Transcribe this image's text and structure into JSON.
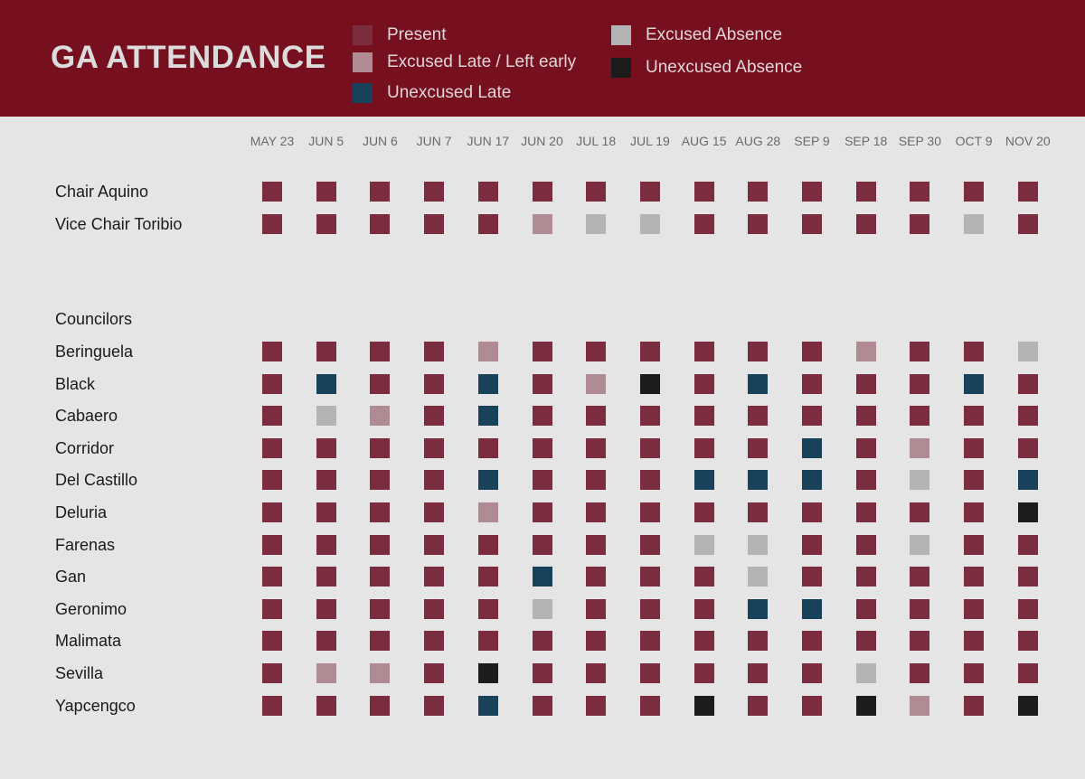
{
  "header": {
    "title": "GA ATTENDANCE"
  },
  "legend": [
    {
      "key": "P",
      "label": "Present",
      "color": "#7b2c3e"
    },
    {
      "key": "L",
      "label": "Excused Late / Left early",
      "color": "#b08b94"
    },
    {
      "key": "U",
      "label": "Unexcused Late",
      "color": "#174259"
    },
    {
      "key": "E",
      "label": "Excused Absence",
      "color": "#b4b4b4"
    },
    {
      "key": "A",
      "label": "Unexcused Absence",
      "color": "#1c1c1c"
    }
  ],
  "chart_data": {
    "type": "heatmap",
    "title": "GA ATTENDANCE",
    "dates": [
      "MAY 23",
      "JUN 5",
      "JUN 6",
      "JUN 7",
      "JUN 17",
      "JUN 20",
      "JUL 18",
      "JUL 19",
      "AUG 15",
      "AUG 28",
      "SEP 9",
      "SEP 18",
      "SEP 30",
      "OCT 9",
      "NOV 20"
    ],
    "section_label": "Councilors",
    "officers": [
      {
        "name": "Chair Aquino",
        "status": [
          "P",
          "P",
          "P",
          "P",
          "P",
          "P",
          "P",
          "P",
          "P",
          "P",
          "P",
          "P",
          "P",
          "P",
          "P"
        ]
      },
      {
        "name": "Vice Chair Toribio",
        "status": [
          "P",
          "P",
          "P",
          "P",
          "P",
          "L",
          "E",
          "E",
          "P",
          "P",
          "P",
          "P",
          "P",
          "E",
          "P"
        ]
      }
    ],
    "councilors": [
      {
        "name": "Beringuela",
        "status": [
          "P",
          "P",
          "P",
          "P",
          "L",
          "P",
          "P",
          "P",
          "P",
          "P",
          "P",
          "L",
          "P",
          "P",
          "E"
        ]
      },
      {
        "name": "Black",
        "status": [
          "P",
          "U",
          "P",
          "P",
          "U",
          "P",
          "L",
          "A",
          "P",
          "U",
          "P",
          "P",
          "P",
          "U",
          "P"
        ]
      },
      {
        "name": "Cabaero",
        "status": [
          "P",
          "E",
          "L",
          "P",
          "U",
          "P",
          "P",
          "P",
          "P",
          "P",
          "P",
          "P",
          "P",
          "P",
          "P"
        ]
      },
      {
        "name": "Corridor",
        "status": [
          "P",
          "P",
          "P",
          "P",
          "P",
          "P",
          "P",
          "P",
          "P",
          "P",
          "U",
          "P",
          "L",
          "P",
          "P"
        ]
      },
      {
        "name": "Del Castillo",
        "status": [
          "P",
          "P",
          "P",
          "P",
          "U",
          "P",
          "P",
          "P",
          "U",
          "U",
          "U",
          "P",
          "E",
          "P",
          "U"
        ]
      },
      {
        "name": "Deluria",
        "status": [
          "P",
          "P",
          "P",
          "P",
          "L",
          "P",
          "P",
          "P",
          "P",
          "P",
          "P",
          "P",
          "P",
          "P",
          "A"
        ]
      },
      {
        "name": "Farenas",
        "status": [
          "P",
          "P",
          "P",
          "P",
          "P",
          "P",
          "P",
          "P",
          "E",
          "E",
          "P",
          "P",
          "E",
          "P",
          "P"
        ]
      },
      {
        "name": "Gan",
        "status": [
          "P",
          "P",
          "P",
          "P",
          "P",
          "U",
          "P",
          "P",
          "P",
          "E",
          "P",
          "P",
          "P",
          "P",
          "P"
        ]
      },
      {
        "name": "Geronimo",
        "status": [
          "P",
          "P",
          "P",
          "P",
          "P",
          "E",
          "P",
          "P",
          "P",
          "U",
          "U",
          "P",
          "P",
          "P",
          "P"
        ]
      },
      {
        "name": "Malimata",
        "status": [
          "P",
          "P",
          "P",
          "P",
          "P",
          "P",
          "P",
          "P",
          "P",
          "P",
          "P",
          "P",
          "P",
          "P",
          "P"
        ]
      },
      {
        "name": "Sevilla",
        "status": [
          "P",
          "L",
          "L",
          "P",
          "A",
          "P",
          "P",
          "P",
          "P",
          "P",
          "P",
          "E",
          "P",
          "P",
          "P"
        ]
      },
      {
        "name": "Yapcengco",
        "status": [
          "P",
          "P",
          "P",
          "P",
          "U",
          "P",
          "P",
          "P",
          "A",
          "P",
          "P",
          "A",
          "L",
          "P",
          "A"
        ]
      }
    ]
  }
}
